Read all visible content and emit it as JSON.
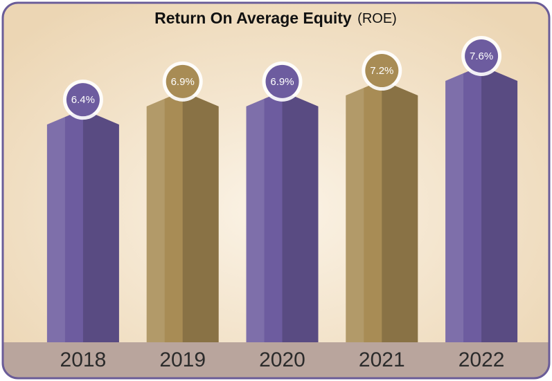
{
  "chart_data": {
    "type": "bar",
    "title": "Return On Average Equity",
    "subtitle": "(ROE)",
    "categories": [
      "2018",
      "2019",
      "2020",
      "2021",
      "2022"
    ],
    "values": [
      6.4,
      6.9,
      6.9,
      7.2,
      7.6
    ],
    "value_labels": [
      "6.4%",
      "6.9%",
      "6.9%",
      "7.2%",
      "7.6%"
    ],
    "colors": [
      "#6d5c9f",
      "#a88c55",
      "#6d5c9f",
      "#a88c55",
      "#6d5c9f"
    ]
  }
}
